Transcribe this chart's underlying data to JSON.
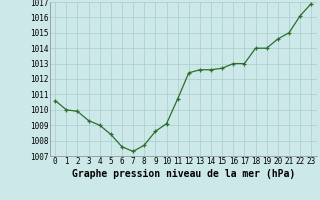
{
  "x": [
    0,
    1,
    2,
    3,
    4,
    5,
    6,
    7,
    8,
    9,
    10,
    11,
    12,
    13,
    14,
    15,
    16,
    17,
    18,
    19,
    20,
    21,
    22,
    23
  ],
  "y": [
    1010.6,
    1010.0,
    1009.9,
    1009.3,
    1009.0,
    1008.4,
    1007.6,
    1007.3,
    1007.7,
    1008.6,
    1009.1,
    1010.7,
    1012.4,
    1012.6,
    1012.6,
    1012.7,
    1013.0,
    1013.0,
    1014.0,
    1014.0,
    1014.6,
    1015.0,
    1016.1,
    1016.9
  ],
  "ylim": [
    1007,
    1017
  ],
  "yticks": [
    1007,
    1008,
    1009,
    1010,
    1011,
    1012,
    1013,
    1014,
    1015,
    1016,
    1017
  ],
  "xticks": [
    0,
    1,
    2,
    3,
    4,
    5,
    6,
    7,
    8,
    9,
    10,
    11,
    12,
    13,
    14,
    15,
    16,
    17,
    18,
    19,
    20,
    21,
    22,
    23
  ],
  "xlabel": "Graphe pression niveau de la mer (hPa)",
  "line_color": "#2d6e2d",
  "marker": "+",
  "bg_color": "#cce8e8",
  "grid_color": "#aacccc",
  "tick_label_fontsize": 5.5,
  "xlabel_fontsize": 7.0
}
